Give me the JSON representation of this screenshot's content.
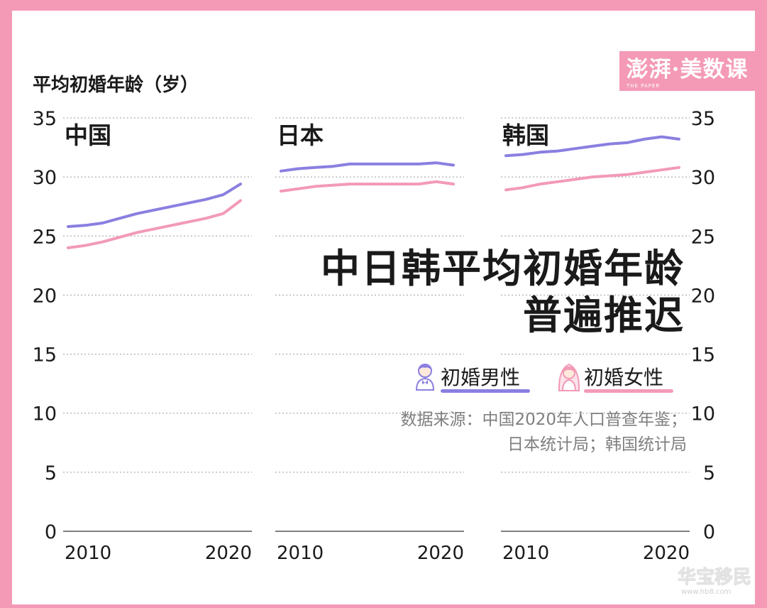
{
  "brand": {
    "logo_text": "澎湃·美数课",
    "logo_subtext": "THE PAPER"
  },
  "watermark": {
    "text": "华宝移民",
    "url": "www.hb8.com"
  },
  "title": {
    "line1": "中日韩平均初婚年龄",
    "line2": "普遍推迟"
  },
  "source": {
    "line1": "数据来源：中国2020年人口普查年鉴；",
    "line2": "日本统计局；韩国统计局"
  },
  "legend": [
    {
      "label": "初婚男性",
      "icon": "groom-icon",
      "color": "#8a7fe0"
    },
    {
      "label": "初婚女性",
      "icon": "bride-icon",
      "color": "#f29ab6"
    }
  ],
  "colors": {
    "male": "#8a7fe0",
    "female": "#f29ab6",
    "grid": "#9a9a9a",
    "axis": "#333333",
    "text": "#1a1a1a"
  },
  "chart_data": {
    "type": "line",
    "ylabel": "平均初婚年龄（岁）",
    "ylim": [
      0,
      35
    ],
    "yticks": [
      0,
      5,
      10,
      15,
      20,
      25,
      30,
      35
    ],
    "xlim": [
      2010,
      2020
    ],
    "xtick_labels": [
      "2010",
      "2020"
    ],
    "grid": true,
    "panels": [
      {
        "name": "中国",
        "x": [
          2010,
          2011,
          2012,
          2013,
          2014,
          2015,
          2016,
          2017,
          2018,
          2019,
          2020
        ],
        "series": [
          {
            "name": "初婚男性",
            "values": [
              25.8,
              25.9,
              26.1,
              26.5,
              26.9,
              27.2,
              27.5,
              27.8,
              28.1,
              28.5,
              29.4
            ]
          },
          {
            "name": "初婚女性",
            "values": [
              24.0,
              24.2,
              24.5,
              24.9,
              25.3,
              25.6,
              25.9,
              26.2,
              26.5,
              26.9,
              28.0
            ]
          }
        ]
      },
      {
        "name": "日本",
        "x": [
          2010,
          2011,
          2012,
          2013,
          2014,
          2015,
          2016,
          2017,
          2018,
          2019,
          2020
        ],
        "series": [
          {
            "name": "初婚男性",
            "values": [
              30.5,
              30.7,
              30.8,
              30.9,
              31.1,
              31.1,
              31.1,
              31.1,
              31.1,
              31.2,
              31.0
            ]
          },
          {
            "name": "初婚女性",
            "values": [
              28.8,
              29.0,
              29.2,
              29.3,
              29.4,
              29.4,
              29.4,
              29.4,
              29.4,
              29.6,
              29.4
            ]
          }
        ]
      },
      {
        "name": "韩国",
        "x": [
          2010,
          2011,
          2012,
          2013,
          2014,
          2015,
          2016,
          2017,
          2018,
          2019,
          2020
        ],
        "series": [
          {
            "name": "初婚男性",
            "values": [
              31.8,
              31.9,
              32.1,
              32.2,
              32.4,
              32.6,
              32.8,
              32.9,
              33.2,
              33.4,
              33.2
            ]
          },
          {
            "name": "初婚女性",
            "values": [
              28.9,
              29.1,
              29.4,
              29.6,
              29.8,
              30.0,
              30.1,
              30.2,
              30.4,
              30.6,
              30.8
            ]
          }
        ]
      }
    ]
  }
}
